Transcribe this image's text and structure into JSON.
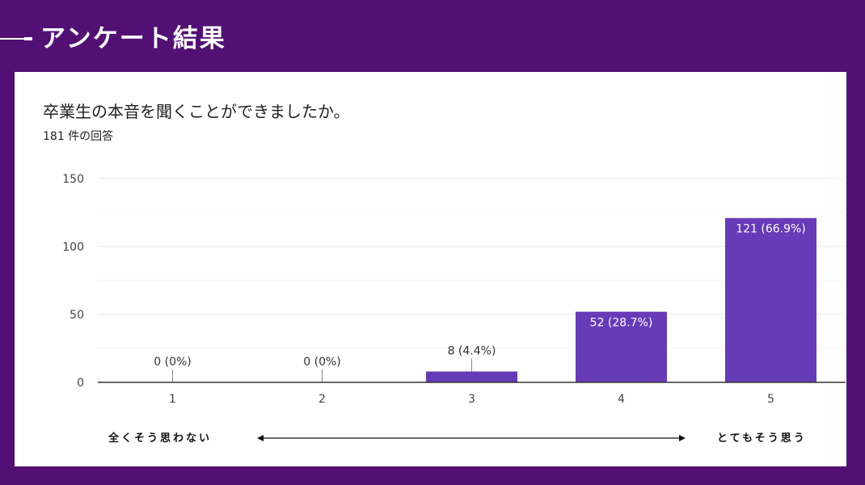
{
  "page_title": "アンケート結果",
  "question": {
    "title": "卒業生の本音を聞くことができましたか。",
    "response_count": "181 件の回答"
  },
  "scale": {
    "left_label": "全くそう思わない",
    "right_label": "とてもそう思う"
  },
  "colors": {
    "background": "#521074",
    "bar": "#673ab7",
    "card": "#ffffff"
  },
  "chart_data": {
    "type": "bar",
    "categories": [
      "1",
      "2",
      "3",
      "4",
      "5"
    ],
    "values": [
      0,
      0,
      8,
      52,
      121
    ],
    "data_labels": [
      "0 (0%)",
      "0 (0%)",
      "8 (4.4%)",
      "52 (28.7%)",
      "121 (66.9%)"
    ],
    "y_ticks": [
      "0",
      "50",
      "100",
      "150"
    ],
    "ylim": [
      0,
      150
    ],
    "grid": true
  }
}
